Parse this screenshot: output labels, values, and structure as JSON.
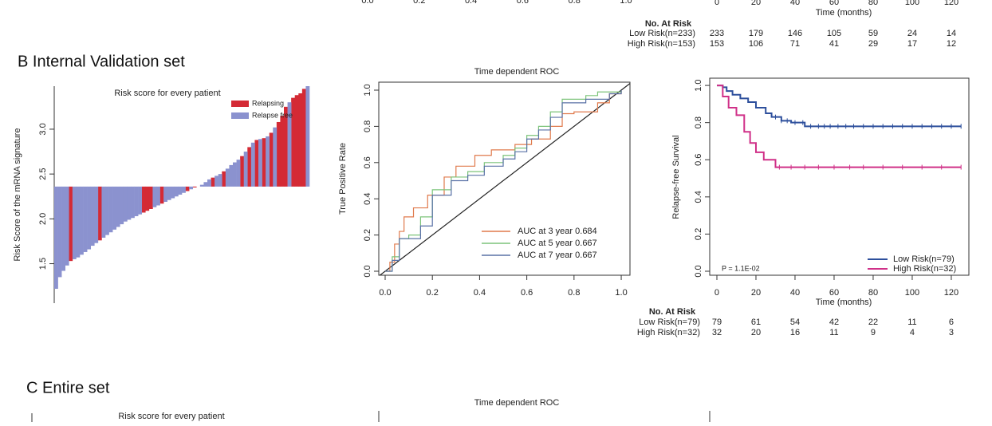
{
  "panel_a_partial": {
    "roc_tick_labels": [
      "0.0",
      "0.2",
      "0.4",
      "0.6",
      "0.8",
      "1.0"
    ],
    "km_tick_labels": [
      "0",
      "20",
      "40",
      "60",
      "80",
      "100",
      "120"
    ],
    "km_x_label": "Time (months)",
    "risk_table": {
      "title": "No. At Risk",
      "rows": [
        {
          "name": "Low Risk(n=233)",
          "values": [
            "233",
            "179",
            "146",
            "105",
            "59",
            "24",
            "14"
          ]
        },
        {
          "name": "High Risk(n=153)",
          "values": [
            "153",
            "106",
            "71",
            "41",
            "29",
            "17",
            "12"
          ]
        }
      ]
    }
  },
  "panel_b_title": "B Internal Validation set",
  "panel_c_title": "C Entire set",
  "panel_c_partial": {
    "waterfall_title": "Risk score for every patient",
    "roc_title": "Time dependent ROC"
  },
  "chart_data": [
    {
      "type": "bar",
      "title": "Risk score for every patient",
      "y_label": "Risk Score of the mRNA signature",
      "cutoff": 2.36,
      "ylim": [
        1.06,
        3.48
      ],
      "yticks": [
        1.5,
        {
          "value": 2,
          "label": "2.0"
        },
        2.5,
        {
          "value": 3,
          "label": "3.0"
        }
      ],
      "legend": "top-right",
      "series": [
        {
          "name": "Relapsing",
          "color": "#d42a35",
          "values": [
            null,
            null,
            null,
            null,
            1.53,
            null,
            null,
            null,
            null,
            null,
            null,
            null,
            1.76,
            null,
            null,
            null,
            null,
            null,
            null,
            null,
            null,
            null,
            null,
            null,
            2.07,
            2.09,
            2.11,
            null,
            null,
            2.17,
            null,
            null,
            null,
            null,
            null,
            null,
            2.31,
            null,
            2.35,
            null,
            null,
            null,
            null,
            2.46,
            null,
            null,
            2.53,
            null,
            null,
            null,
            null,
            2.7,
            null,
            2.8,
            null,
            2.88,
            null,
            2.9,
            null,
            2.96,
            null,
            3.08,
            3.15,
            3.25,
            null,
            3.35,
            3.38,
            3.4,
            3.45,
            null
          ]
        },
        {
          "name": "Relapse free",
          "color": "#8b92cf",
          "values": [
            1.22,
            1.35,
            1.42,
            1.48,
            null,
            1.55,
            1.57,
            1.6,
            1.63,
            1.66,
            1.7,
            1.73,
            null,
            1.79,
            1.82,
            1.85,
            1.88,
            1.91,
            1.94,
            1.97,
            1.99,
            2.01,
            2.03,
            2.05,
            null,
            null,
            null,
            2.13,
            2.15,
            null,
            2.19,
            2.21,
            2.23,
            2.25,
            2.27,
            2.29,
            null,
            2.33,
            null,
            2.36,
            2.38,
            2.41,
            2.44,
            null,
            2.48,
            2.5,
            null,
            2.56,
            2.6,
            2.63,
            2.66,
            null,
            2.75,
            null,
            2.85,
            null,
            2.89,
            null,
            2.92,
            null,
            3.02,
            null,
            null,
            null,
            3.3,
            null,
            null,
            null,
            null,
            3.48
          ]
        }
      ]
    },
    {
      "type": "line",
      "title": "Time dependent ROC",
      "y_label": "True Positive Rate",
      "step": true,
      "diagonal": true,
      "xlim": [
        -0.027,
        1.037
      ],
      "ylim": [
        -0.022,
        1.044
      ],
      "xticks": [
        {
          "value": 0,
          "label": "0.0"
        },
        0.2,
        0.4,
        0.6,
        0.8,
        {
          "value": 1,
          "label": "1.0"
        }
      ],
      "yticks": [
        {
          "value": 0,
          "label": "0.0"
        },
        0.2,
        0.4,
        0.6,
        0.8,
        {
          "value": 1,
          "label": "1.0"
        }
      ],
      "legend": "bottom-right",
      "series": [
        {
          "name": "AUC at 3 year 0.684",
          "color": "#e07a4c",
          "x": [
            0,
            0.02,
            0.04,
            0.06,
            0.08,
            0.12,
            0.18,
            0.25,
            0.3,
            0.38,
            0.45,
            0.5,
            0.55,
            0.62,
            0.7,
            0.75,
            0.8,
            0.9,
            0.95,
            1
          ],
          "values": [
            0,
            0.05,
            0.15,
            0.22,
            0.3,
            0.35,
            0.42,
            0.52,
            0.58,
            0.64,
            0.67,
            0.67,
            0.7,
            0.73,
            0.8,
            0.87,
            0.88,
            0.93,
            0.98,
            1
          ]
        },
        {
          "name": "AUC at 5 year 0.667",
          "color": "#7cc47a",
          "x": [
            0,
            0.03,
            0.06,
            0.1,
            0.15,
            0.2,
            0.28,
            0.35,
            0.42,
            0.5,
            0.55,
            0.6,
            0.65,
            0.7,
            0.75,
            0.85,
            0.9,
            1
          ],
          "values": [
            0,
            0.08,
            0.18,
            0.2,
            0.3,
            0.45,
            0.52,
            0.55,
            0.6,
            0.64,
            0.68,
            0.75,
            0.8,
            0.88,
            0.95,
            0.97,
            0.99,
            1
          ]
        },
        {
          "name": "AUC at 7 year 0.667",
          "color": "#5a72a6",
          "x": [
            0,
            0.03,
            0.06,
            0.1,
            0.15,
            0.2,
            0.28,
            0.35,
            0.42,
            0.5,
            0.55,
            0.6,
            0.65,
            0.7,
            0.75,
            0.85,
            0.95,
            1
          ],
          "values": [
            0,
            0.06,
            0.18,
            0.18,
            0.25,
            0.42,
            0.5,
            0.53,
            0.58,
            0.62,
            0.66,
            0.73,
            0.78,
            0.85,
            0.93,
            0.95,
            0.98,
            1
          ]
        }
      ]
    },
    {
      "type": "step",
      "y_label": "Relapse-free Survival",
      "x_label": "Time (months)",
      "annotation": "P = 1.1E-02",
      "xlim": [
        -3.67,
        129
      ],
      "ylim": [
        -0.0215,
        1.039
      ],
      "xticks": [
        0,
        20,
        40,
        60,
        80,
        100,
        120
      ],
      "yticks": [
        {
          "value": 0,
          "label": "0.0"
        },
        0.2,
        0.4,
        0.6,
        0.8,
        {
          "value": 1,
          "label": "1.0"
        }
      ],
      "legend": "bottom-right",
      "series": [
        {
          "name": "Low Risk(n=79)",
          "color": "#2d4f9c",
          "x": [
            0,
            3,
            5,
            8,
            12,
            16,
            20,
            25,
            28,
            33,
            38,
            45,
            125
          ],
          "values": [
            1,
            0.99,
            0.97,
            0.95,
            0.93,
            0.91,
            0.88,
            0.85,
            0.83,
            0.81,
            0.8,
            0.78,
            0.78
          ],
          "censored": [
            30,
            33,
            36,
            40,
            44,
            48,
            52,
            55,
            58,
            62,
            66,
            70,
            75,
            80,
            85,
            90,
            95,
            100,
            105,
            110,
            115,
            120,
            125
          ]
        },
        {
          "name": "High Risk(n=32)",
          "color": "#d03088",
          "x": [
            0,
            3,
            6,
            10,
            14,
            17,
            20,
            24,
            30,
            125
          ],
          "values": [
            1,
            0.94,
            0.88,
            0.84,
            0.75,
            0.69,
            0.64,
            0.6,
            0.56,
            0.56
          ],
          "censored": [
            32,
            38,
            45,
            52,
            60,
            68,
            75,
            85,
            95,
            105,
            115,
            125
          ]
        }
      ],
      "risk_table": {
        "title": "No. At Risk",
        "rows": [
          {
            "name": "Low Risk(n=79)",
            "values": [
              79,
              61,
              54,
              42,
              22,
              11,
              6
            ]
          },
          {
            "name": "High Risk(n=32)",
            "values": [
              32,
              20,
              16,
              11,
              9,
              4,
              3
            ]
          }
        ]
      }
    }
  ]
}
